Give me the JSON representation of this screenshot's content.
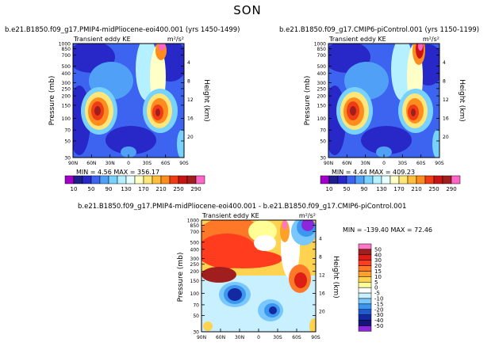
{
  "page": {
    "title": "SON"
  },
  "panels": [
    {
      "id": "left",
      "title": "b.e21.B1850.f09_g17.PMIP4-midPliocene-eoi400.001 (yrs 1450-1499)",
      "left_label": "Transient eddy KE",
      "right_label": "m²/s²",
      "ylabel": "Pressure (mb)",
      "y2label": "Height (km)",
      "stats": "MIN = 4.56 MAX = 356.17"
    },
    {
      "id": "right",
      "title": "b.e21.B1850.f09_g17.CMIP6-piControl.001 (yrs 1150-1199)",
      "left_label": "Transient eddy KE",
      "right_label": "m²/s²",
      "ylabel": "Pressure (mb)",
      "y2label": "Height (km)",
      "stats": "MIN = 4.44 MAX = 409.23"
    },
    {
      "id": "diff",
      "title": "b.e21.B1850.f09_g17.PMIP4-midPliocene-eoi400.001 - b.e21.B1850.f09_g17.CMIP6-piControl.001",
      "left_label": "Transient eddy KE",
      "right_label": "m²/s²",
      "ylabel": "Pressure (mb)",
      "y2label": "Height (km)",
      "stats": "MIN = -139.40 MAX = 72.46"
    }
  ],
  "shared_colorbar": {
    "labels": [
      "10",
      "50",
      "90",
      "130",
      "170",
      "210",
      "250",
      "290"
    ],
    "colors": [
      "#a000c8",
      "#1e1e8c",
      "#2828c8",
      "#3c64f0",
      "#50a0f8",
      "#78d2ff",
      "#b4f0ff",
      "#e6ffff",
      "#ffffc8",
      "#ffe678",
      "#ffbe3c",
      "#ff8c1e",
      "#f03c14",
      "#c81414",
      "#a01e1e",
      "#ff64c8"
    ]
  },
  "diff_colorbar": {
    "labels": [
      "50",
      "40",
      "30",
      "20",
      "15",
      "10",
      "5",
      "0",
      "-5",
      "-10",
      "-15",
      "-20",
      "-30",
      "-40",
      "-50"
    ],
    "colors": [
      "#ff78c8",
      "#a01e1e",
      "#dc1e14",
      "#ff3c1e",
      "#ff7828",
      "#ffa028",
      "#ffd250",
      "#ffff96",
      "#ffffff",
      "#c8f0ff",
      "#78c8ff",
      "#3c96f0",
      "#1e5ad2",
      "#1428a0",
      "#14147a",
      "#8c28dc"
    ]
  },
  "chart_data": [
    {
      "type": "heatmap",
      "title": "b.e21.B1850.f09_g17.PMIP4-midPliocene-eoi400.001 (yrs 1450-1499)",
      "variable": "Transient eddy KE",
      "units": "m²/s²",
      "x_ticklabels": [
        "90N",
        "60N",
        "30N",
        "0",
        "30S",
        "60S",
        "90S"
      ],
      "y_ticklabels": [
        "30",
        "50",
        "70",
        "100",
        "150",
        "200",
        "250",
        "300",
        "400",
        "500",
        "700",
        "850",
        "1000"
      ],
      "y2_ticklabels": [
        "20",
        "16",
        "12",
        "8",
        "4"
      ],
      "ylabel": "Pressure (mb)",
      "y2label": "Height (km)",
      "min": 4.56,
      "max": 356.17
    },
    {
      "type": "heatmap",
      "title": "b.e21.B1850.f09_g17.CMIP6-piControl.001 (yrs 1150-1199)",
      "variable": "Transient eddy KE",
      "units": "m²/s²",
      "x_ticklabels": [
        "90N",
        "60N",
        "30N",
        "0",
        "30S",
        "60S",
        "90S"
      ],
      "y_ticklabels": [
        "30",
        "50",
        "70",
        "100",
        "150",
        "200",
        "250",
        "300",
        "400",
        "500",
        "700",
        "850",
        "1000"
      ],
      "y2_ticklabels": [
        "20",
        "16",
        "12",
        "8",
        "4"
      ],
      "ylabel": "Pressure (mb)",
      "y2label": "Height (km)",
      "min": 4.44,
      "max": 409.23
    },
    {
      "type": "heatmap",
      "title": "b.e21.B1850.f09_g17.PMIP4-midPliocene-eoi400.001 - b.e21.B1850.f09_g17.CMIP6-piControl.001",
      "variable": "Transient eddy KE",
      "units": "m²/s²",
      "x_ticklabels": [
        "90N",
        "60N",
        "30N",
        "0",
        "30S",
        "60S",
        "90S"
      ],
      "y_ticklabels": [
        "30",
        "50",
        "70",
        "100",
        "150",
        "200",
        "250",
        "300",
        "400",
        "500",
        "700",
        "850",
        "1000"
      ],
      "y2_ticklabels": [
        "20",
        "16",
        "12",
        "8",
        "4"
      ],
      "ylabel": "Pressure (mb)",
      "y2label": "Height (km)",
      "min": -139.4,
      "max": 72.46
    }
  ]
}
